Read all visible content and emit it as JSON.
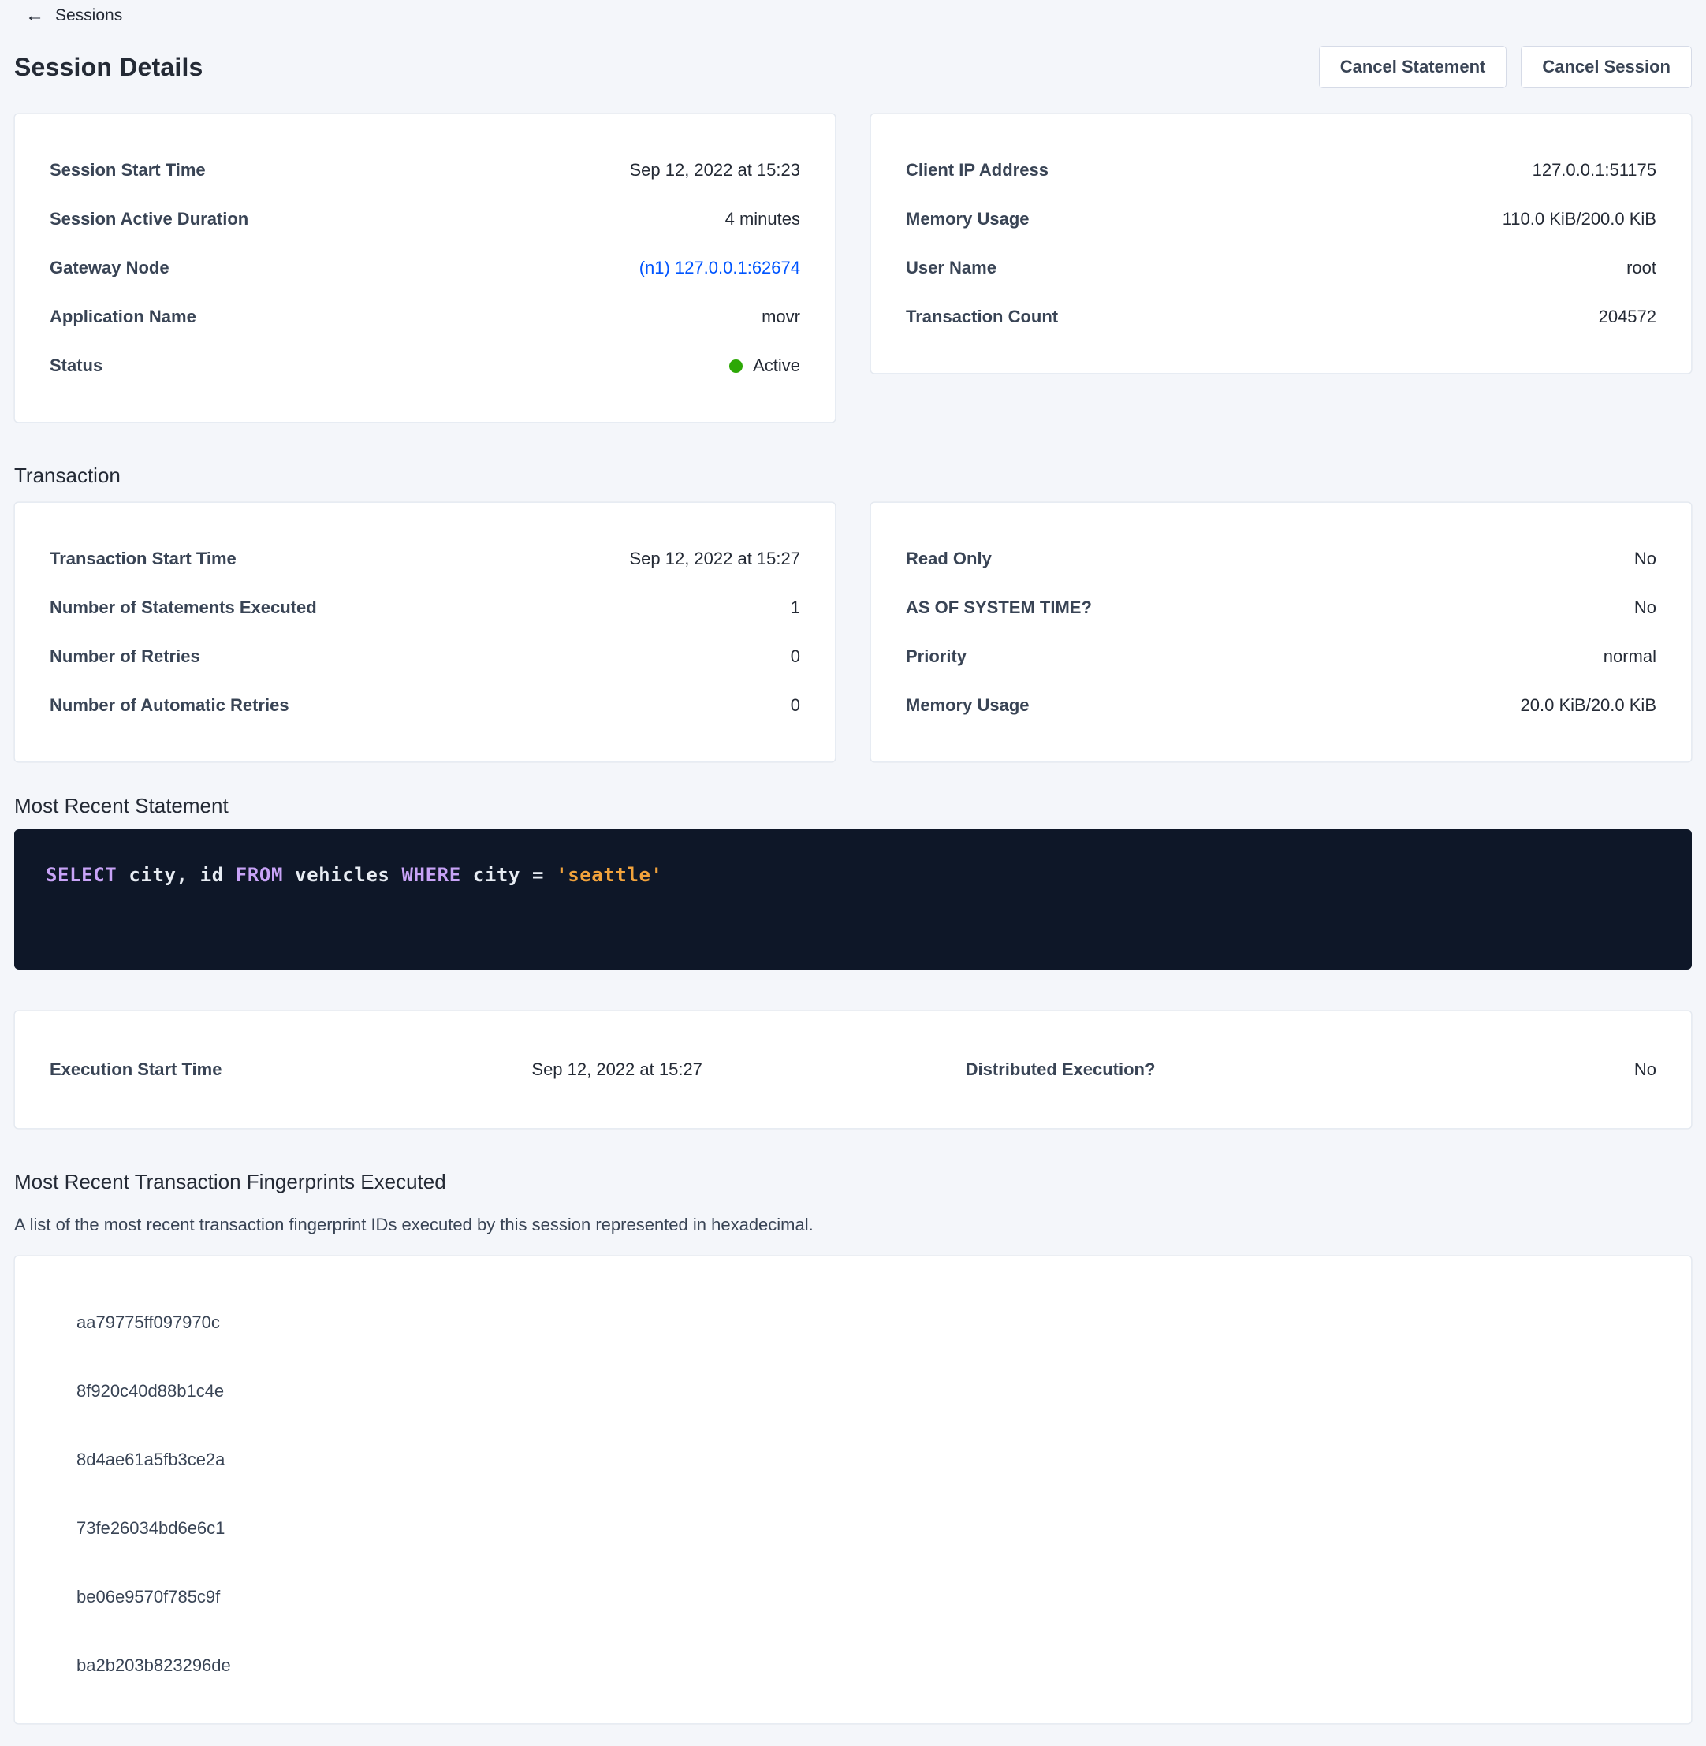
{
  "breadcrumb": {
    "back_label": "Sessions"
  },
  "icons": {
    "back_arrow": "←"
  },
  "page": {
    "title": "Session Details"
  },
  "actions": {
    "cancel_statement": "Cancel Statement",
    "cancel_session": "Cancel Session"
  },
  "colors": {
    "link_blue": "#0055ff",
    "status_active_green": "#2da806",
    "code_background": "#0e1728",
    "sql_keyword": "#c8a3f7",
    "sql_string": "#f2a33c"
  },
  "session_card": {
    "rows": [
      {
        "label": "Session Start Time",
        "value": "Sep 12, 2022 at 15:23"
      },
      {
        "label": "Session Active Duration",
        "value": "4 minutes"
      },
      {
        "label": "Gateway Node",
        "value": "(n1) 127.0.0.1:62674"
      },
      {
        "label": "Application Name",
        "value": "movr"
      },
      {
        "label": "Status",
        "value": "Active"
      }
    ]
  },
  "client_card": {
    "rows": [
      {
        "label": "Client IP Address",
        "value": "127.0.0.1:51175"
      },
      {
        "label": "Memory Usage",
        "value": "110.0 KiB/200.0 KiB"
      },
      {
        "label": "User Name",
        "value": "root"
      },
      {
        "label": "Transaction Count",
        "value": "204572"
      }
    ]
  },
  "transaction_section": {
    "heading": "Transaction",
    "left_card": {
      "rows": [
        {
          "label": "Transaction Start Time",
          "value": "Sep 12, 2022 at 15:27"
        },
        {
          "label": "Number of Statements Executed",
          "value": "1"
        },
        {
          "label": "Number of Retries",
          "value": "0"
        },
        {
          "label": "Number of Automatic Retries",
          "value": "0"
        }
      ]
    },
    "right_card": {
      "rows": [
        {
          "label": "Read Only",
          "value": "No"
        },
        {
          "label": "AS OF SYSTEM TIME?",
          "value": "No"
        },
        {
          "label": "Priority",
          "value": "normal"
        },
        {
          "label": "Memory Usage",
          "value": "20.0 KiB/20.0 KiB"
        }
      ]
    }
  },
  "statement_section": {
    "heading": "Most Recent Statement",
    "sql_tokens": [
      {
        "text": "SELECT",
        "type": "keyword"
      },
      {
        "text": " city, id ",
        "type": "plain"
      },
      {
        "text": "FROM",
        "type": "keyword"
      },
      {
        "text": " vehicles ",
        "type": "plain"
      },
      {
        "text": "WHERE",
        "type": "keyword"
      },
      {
        "text": " city = ",
        "type": "plain"
      },
      {
        "text": "'seattle'",
        "type": "string"
      }
    ]
  },
  "execution_card": {
    "left": {
      "label": "Execution Start Time",
      "value": "Sep 12, 2022 at 15:27"
    },
    "right": {
      "label": "Distributed Execution?",
      "value": "No"
    }
  },
  "fingerprints_section": {
    "heading": "Most Recent Transaction Fingerprints Executed",
    "description": "A list of the most recent transaction fingerprint IDs executed by this session represented in hexadecimal.",
    "items": [
      "aa79775ff097970c",
      "8f920c40d88b1c4e",
      "8d4ae61a5fb3ce2a",
      "73fe26034bd6e6c1",
      "be06e9570f785c9f",
      "ba2b203b823296de"
    ]
  }
}
